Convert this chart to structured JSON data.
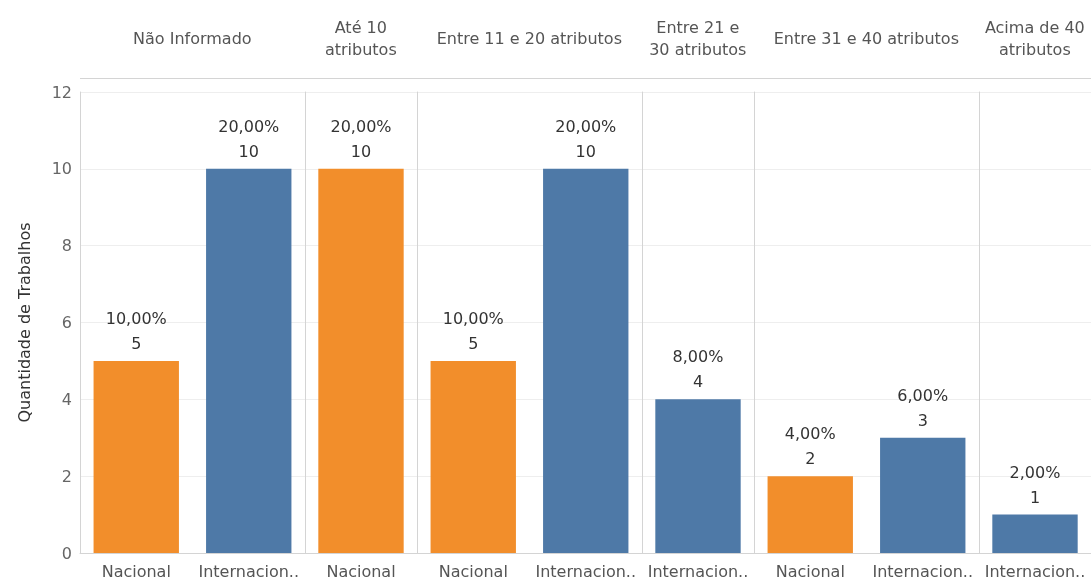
{
  "chart_data": [
    {
      "type": "bar",
      "title": "Não Informado",
      "ylabel": "Quantidade de Trabalhos",
      "categories": [
        "Nacional",
        "Internacion.."
      ],
      "values": [
        5,
        10
      ],
      "colors": [
        "#f28e2b",
        "#4e79a7"
      ],
      "value_labels": [
        "10,00%\n5",
        "20,00%\n10"
      ],
      "ylim": [
        0,
        12
      ],
      "yticks": [
        0,
        2,
        4,
        6,
        8,
        10,
        12
      ],
      "grid": "y"
    },
    {
      "type": "bar",
      "title": "Até 10 atributos",
      "categories": [
        "Nacional"
      ],
      "values": [
        10
      ],
      "colors": [
        "#f28e2b"
      ],
      "value_labels": [
        "20,00%\n10"
      ],
      "ylim": [
        0,
        12
      ],
      "yticks": [
        0,
        2,
        4,
        6,
        8,
        10,
        12
      ],
      "grid": "y",
      "tick_labels": "x"
    },
    {
      "type": "bar",
      "title": "Entre 11 e 20 atributos",
      "categories": [
        "Nacional",
        "Internacion.."
      ],
      "values": [
        5,
        10
      ],
      "colors": [
        "#f28e2b",
        "#4e79a7"
      ],
      "value_labels": [
        "10,00%\n5",
        "20,00%\n10"
      ],
      "ylim": [
        0,
        12
      ],
      "yticks": [
        0,
        2,
        4,
        6,
        8,
        10,
        12
      ],
      "grid": "y",
      "tick_labels": "x"
    },
    {
      "type": "bar",
      "title": "Entre 21 e 30 atributos",
      "categories": [
        "Internacion.."
      ],
      "values": [
        4
      ],
      "colors": [
        "#4e79a7"
      ],
      "value_labels": [
        "8,00%\n4"
      ],
      "ylim": [
        0,
        12
      ],
      "yticks": [
        0,
        2,
        4,
        6,
        8,
        10,
        12
      ],
      "grid": "y",
      "tick_labels": "x"
    },
    {
      "type": "bar",
      "title": "Entre 31 e 40 atributos",
      "categories": [
        "Nacional",
        "Internacion.."
      ],
      "values": [
        2,
        3
      ],
      "colors": [
        "#f28e2b",
        "#4e79a7"
      ],
      "value_labels": [
        "4,00%\n2",
        "6,00%\n3"
      ],
      "ylim": [
        0,
        12
      ],
      "yticks": [
        0,
        2,
        4,
        6,
        8,
        10,
        12
      ],
      "grid": "y",
      "tick_labels": "x"
    },
    {
      "type": "bar",
      "title": "Acima de 40 atributos",
      "categories": [
        "Internacion.."
      ],
      "values": [
        1
      ],
      "colors": [
        "#4e79a7"
      ],
      "value_labels": [
        "2,00%\n1"
      ],
      "ylim": [
        0,
        12
      ],
      "yticks": [
        0,
        2,
        4,
        6,
        8,
        10,
        12
      ],
      "grid": "y",
      "tick_labels": "x"
    }
  ]
}
